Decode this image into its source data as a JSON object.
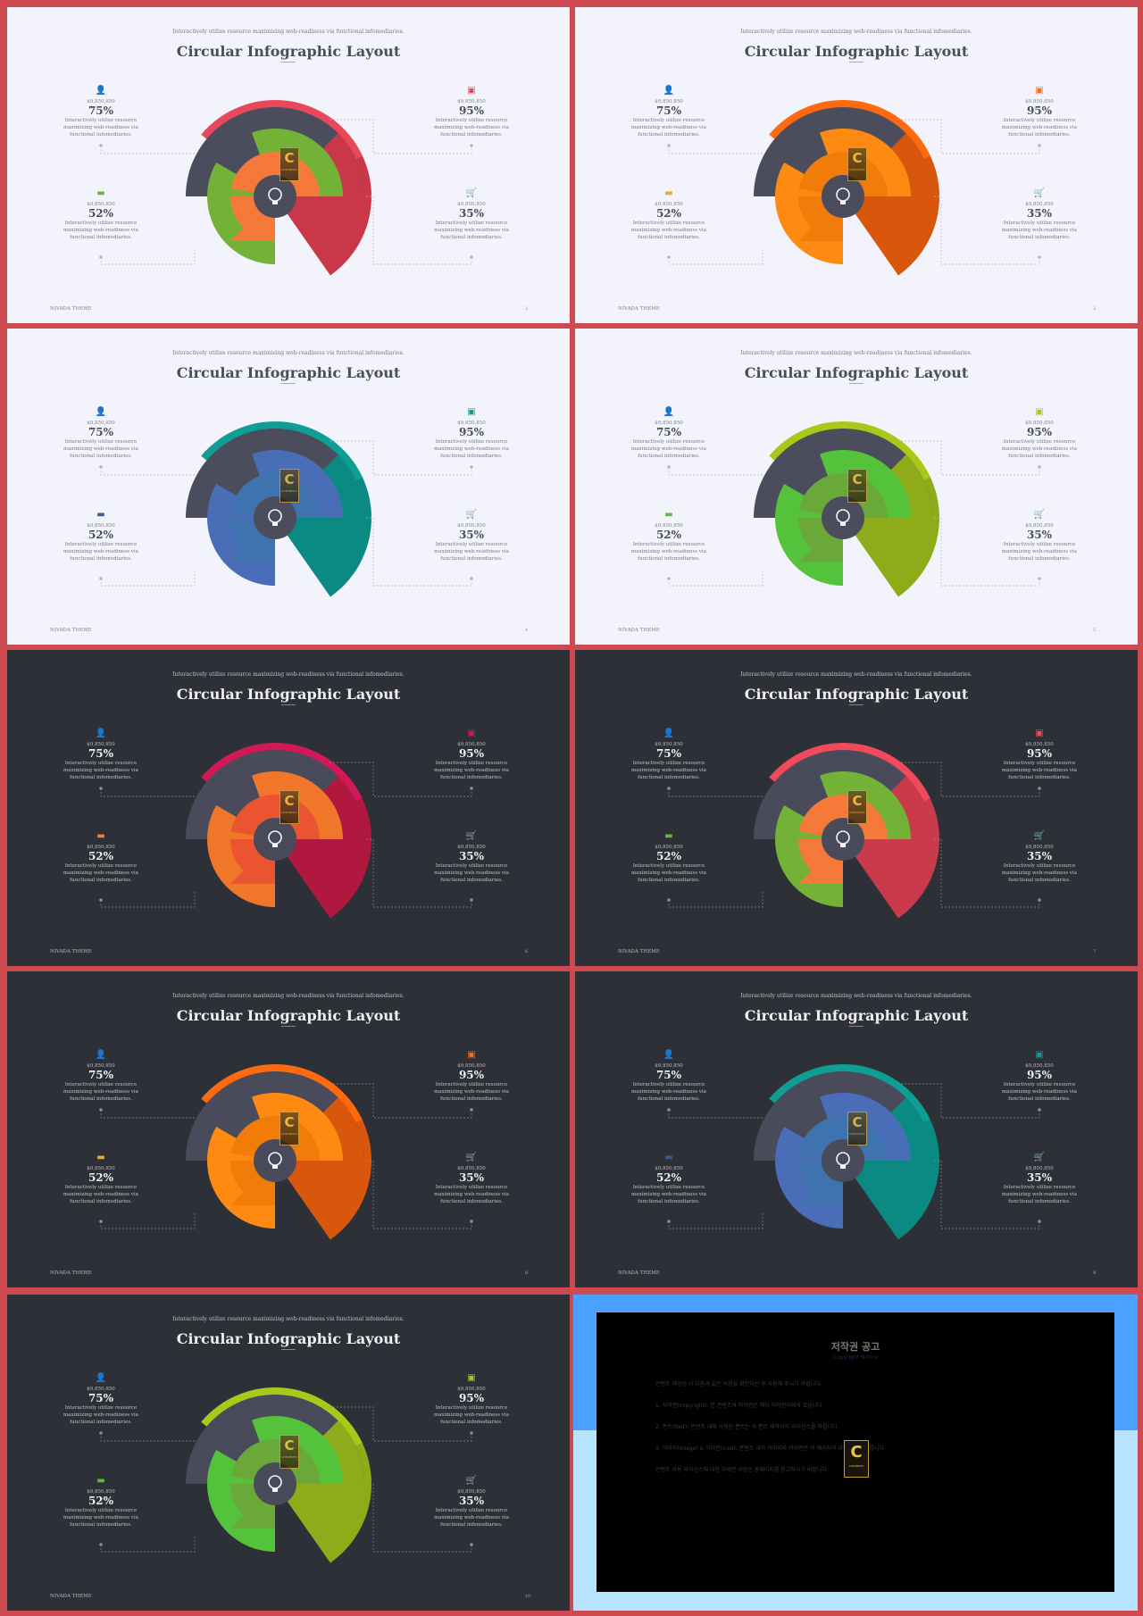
{
  "slides": [
    {
      "theme": "light",
      "page": "2",
      "colors": {
        "outer": "#e8495a",
        "outer_dark": "#c83848",
        "arc": "#4c4d5c",
        "inner": "#73b236",
        "core": "#f57a3a",
        "hub": "#4c4d5c",
        "icon_a": "#f0813d",
        "icon_b": "#e8495a",
        "icon_c": "#73b236",
        "icon_d": "#8f909b"
      }
    },
    {
      "theme": "light",
      "page": "2",
      "colors": {
        "outer": "#ff6a10",
        "outer_dark": "#d9560d",
        "arc": "#4c4d5c",
        "inner": "#ff8a12",
        "core": "#f27c0a",
        "hub": "#4c4d5c",
        "icon_a": "#f7861e",
        "icon_b": "#ff6a10",
        "icon_c": "#f7a51e",
        "icon_d": "#8f909b"
      }
    },
    {
      "theme": "light",
      "page": "4",
      "colors": {
        "outer": "#0e9e96",
        "outer_dark": "#0b8a83",
        "arc": "#4c4d5c",
        "inner": "#4a6db8",
        "core": "#3f73b0",
        "hub": "#4c4d5c",
        "icon_a": "#3f73b0",
        "icon_b": "#0e9e96",
        "icon_c": "#3a5aa0",
        "icon_d": "#8f909b"
      }
    },
    {
      "theme": "light",
      "page": "5",
      "colors": {
        "outer": "#aac81a",
        "outer_dark": "#8fab1a",
        "arc": "#4c4d5c",
        "inner": "#54c23a",
        "core": "#6aa83a",
        "hub": "#4c4d5c",
        "icon_a": "#6ab52a",
        "icon_b": "#aac81a",
        "icon_c": "#54c23a",
        "icon_d": "#8f909b"
      }
    },
    {
      "theme": "dark",
      "page": "6",
      "colors": {
        "outer": "#d11a55",
        "outer_dark": "#b0183f",
        "arc": "#4a4b5a",
        "inner": "#f0772a",
        "core": "#ea5430",
        "hub": "#4a4b5a",
        "icon_a": "#f0813d",
        "icon_b": "#d11a55",
        "icon_c": "#f0813d",
        "icon_d": "#b8b9c4"
      }
    },
    {
      "theme": "dark",
      "page": "7",
      "colors": {
        "outer": "#f04a5c",
        "outer_dark": "#c93a4a",
        "arc": "#4a4b5a",
        "inner": "#73b236",
        "core": "#f57a3a",
        "hub": "#4a4b5a",
        "icon_a": "#f0813d",
        "icon_b": "#f04a5c",
        "icon_c": "#73b236",
        "icon_d": "#b8b9c4"
      }
    },
    {
      "theme": "dark",
      "page": "8",
      "colors": {
        "outer": "#ff6a10",
        "outer_dark": "#d9560d",
        "arc": "#4a4b5a",
        "inner": "#ff8a12",
        "core": "#f27c0a",
        "hub": "#4a4b5a",
        "icon_a": "#f7861e",
        "icon_b": "#ff6a10",
        "icon_c": "#f7a51e",
        "icon_d": "#b8b9c4"
      }
    },
    {
      "theme": "dark",
      "page": "9",
      "colors": {
        "outer": "#0e9e96",
        "outer_dark": "#0b8a83",
        "arc": "#4a4b5a",
        "inner": "#4a6db8",
        "core": "#3f73b0",
        "hub": "#4a4b5a",
        "icon_a": "#3f73b0",
        "icon_b": "#0e9e96",
        "icon_c": "#3a5aa0",
        "icon_d": "#b8b9c4"
      }
    },
    {
      "theme": "dark",
      "page": "10",
      "colors": {
        "outer": "#aac81a",
        "outer_dark": "#8fab1a",
        "arc": "#4a4b5a",
        "inner": "#54c23a",
        "core": "#6aa83a",
        "hub": "#4a4b5a",
        "icon_a": "#6ab52a",
        "icon_b": "#aac81a",
        "icon_c": "#54c23a",
        "icon_d": "#b8b9c4"
      }
    }
  ],
  "content": {
    "subtitle": "Interactively utilize resource maximizing web-readiness via functional infomediaries.",
    "title": "Circular Infographic Layout",
    "footer_brand": "NIVADA THEME",
    "blocks": [
      {
        "icon": "user-icon",
        "glyph": "👤",
        "number": "$9,850,850",
        "percent": "75%",
        "desc": "Interactively utilize resource maximizing web-readiness via functional infomediaries."
      },
      {
        "icon": "credit-card-icon",
        "glyph": "▣",
        "number": "$9,850,850",
        "percent": "95%",
        "desc": "Interactively utilize resource maximizing web-readiness via functional infomediaries."
      },
      {
        "icon": "folder-icon",
        "glyph": "▬",
        "number": "$9,850,850",
        "percent": "52%",
        "desc": "Interactively utilize resource maximizing web-readiness via functional infomediaries."
      },
      {
        "icon": "cart-icon",
        "glyph": "🛒",
        "number": "$9,850,850",
        "percent": "35%",
        "desc": "Interactively utilize resource maximizing web-readiness via functional infomediaries."
      }
    ],
    "watermark": {
      "letter": "C",
      "small": "CONTENTS"
    }
  },
  "notice": {
    "title": "저작권 공고",
    "subtitle": "Copyright Notice",
    "paragraphs": [
      "콘텐츠 제공업 시 다음과 같은 사항을 확인하신 후 사용해 주시기 바랍니다.",
      "1. 저작권(copyright): 본 콘텐츠의 저작권은 해당 저작권자에게 있습니다.",
      "2. 폰트(font): 콘텐츠 내에 사용된 폰트는 각 폰트 제작사의 라이선스를 따릅니다.",
      "3. 이미지(image) & 아이콘(icon): 콘텐츠 내의 이미지와 아이콘은 각 제공처의 라이선스를 따릅니다.",
      "콘텐츠 사용 라이선스에 대한 자세한 사항은 홈페이지를 참고하시기 바랍니다."
    ]
  }
}
